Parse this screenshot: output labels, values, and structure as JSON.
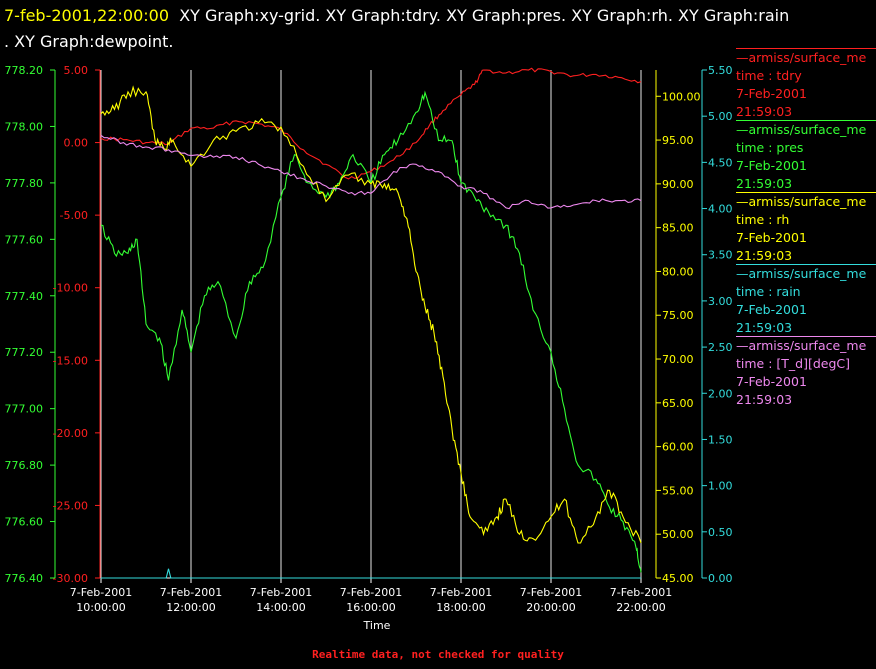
{
  "title": {
    "timestamp": "7-feb-2001,22:00:00",
    "line1": "XY Graph:xy-grid.  XY Graph:tdry.  XY Graph:pres.  XY Graph:rh.  XY Graph:rain",
    "line2": ".  XY Graph:dewpoint."
  },
  "footer": "Realtime data, not checked for quality",
  "legend": [
    {
      "name": "—armiss/surface_me",
      "var": "time : tdry",
      "date": "7-Feb-2001",
      "time": "21:59:03",
      "color": "#ff2020"
    },
    {
      "name": "—armiss/surface_me",
      "var": "time : pres",
      "date": "7-Feb-2001",
      "time": "21:59:03",
      "color": "#33ff33"
    },
    {
      "name": "—armiss/surface_me",
      "var": "time : rh",
      "date": "7-Feb-2001",
      "time": "21:59:03",
      "color": "#ffff00"
    },
    {
      "name": "—armiss/surface_me",
      "var": "time : rain",
      "date": "7-Feb-2001",
      "time": "21:59:03",
      "color": "#33dddd"
    },
    {
      "name": "—armiss/surface_me",
      "var": "time : [T_d][degC]",
      "date": "7-Feb-2001",
      "time": "21:59:03",
      "color": "#ee88ee"
    }
  ],
  "chart_data": {
    "type": "line",
    "xlabel": "Time",
    "xlim": [
      10,
      22
    ],
    "grid": true,
    "x_ticks": [
      {
        "value": 10,
        "date": "7-Feb-2001",
        "time": "10:00:00"
      },
      {
        "value": 12,
        "date": "7-Feb-2001",
        "time": "12:00:00"
      },
      {
        "value": 14,
        "date": "7-Feb-2001",
        "time": "14:00:00"
      },
      {
        "value": 16,
        "date": "7-Feb-2001",
        "time": "16:00:00"
      },
      {
        "value": 18,
        "date": "7-Feb-2001",
        "time": "18:00:00"
      },
      {
        "value": 20,
        "date": "7-Feb-2001",
        "time": "20:00:00"
      },
      {
        "value": 22,
        "date": "7-Feb-2001",
        "time": "22:00:00"
      }
    ],
    "axes": [
      {
        "id": "pres",
        "side": "left",
        "color": "#33ff33",
        "range": [
          776.4,
          778.2
        ],
        "ticks": [
          "778.20",
          "778.00",
          "777.80",
          "777.60",
          "777.40",
          "777.20",
          "777.00",
          "776.80",
          "776.60",
          "776.40"
        ]
      },
      {
        "id": "tdry",
        "side": "left",
        "color": "#ff2020",
        "range": [
          -30.0,
          5.0
        ],
        "ticks": [
          "5.00",
          "0.00",
          "-5.00",
          "-10.00",
          "-15.00",
          "-20.00",
          "-25.00",
          "-30.00"
        ]
      },
      {
        "id": "rh",
        "side": "right",
        "color": "#ffff00",
        "range": [
          45.0,
          103.0
        ],
        "ticks": [
          "100.00",
          "95.00",
          "90.00",
          "85.00",
          "80.00",
          "75.00",
          "70.00",
          "65.00",
          "60.00",
          "55.00",
          "50.00",
          "45.00"
        ]
      },
      {
        "id": "rain",
        "side": "right",
        "color": "#33dddd",
        "range": [
          0,
          5.5
        ],
        "ticks": [
          "5.50",
          "5.00",
          "4.50",
          "4.00",
          "3.50",
          "3.00",
          "2.50",
          "2.00",
          "1.50",
          "1.00",
          "0.50",
          "0.00"
        ]
      }
    ],
    "series": [
      {
        "name": "tdry",
        "axis": "tdry",
        "color": "#ff2020",
        "x": [
          10.0,
          10.5,
          11.0,
          11.5,
          12.0,
          12.5,
          13.0,
          13.5,
          14.0,
          14.5,
          15.0,
          15.5,
          16.0,
          16.5,
          17.0,
          17.3,
          17.6,
          18.0,
          18.3,
          18.5,
          19.0,
          19.5,
          20.0,
          20.5,
          21.0,
          21.5,
          22.0
        ],
        "y": [
          0.3,
          0.2,
          0.0,
          -0.1,
          1.0,
          1.0,
          1.5,
          1.3,
          0.9,
          -0.5,
          -1.5,
          -2.5,
          -2.0,
          -1.2,
          0.0,
          1.2,
          2.2,
          3.3,
          4.0,
          5.0,
          4.8,
          5.0,
          4.9,
          4.6,
          4.7,
          4.5,
          4.2
        ]
      },
      {
        "name": "pres",
        "axis": "pres",
        "color": "#33ff33",
        "x": [
          10.0,
          10.3,
          10.6,
          10.8,
          11.0,
          11.3,
          11.5,
          11.8,
          12.0,
          12.3,
          12.6,
          13.0,
          13.3,
          13.6,
          14.0,
          14.3,
          14.6,
          15.0,
          15.3,
          15.6,
          16.0,
          16.3,
          16.6,
          17.0,
          17.2,
          17.5,
          17.8,
          18.0,
          18.3,
          18.6,
          19.0,
          19.3,
          19.6,
          20.0,
          20.3,
          20.6,
          21.0,
          21.3,
          21.6,
          21.9,
          22.0
        ],
        "y": [
          777.65,
          777.55,
          777.55,
          777.6,
          777.3,
          777.25,
          777.1,
          777.35,
          777.2,
          777.4,
          777.45,
          777.25,
          777.45,
          777.5,
          777.75,
          777.9,
          777.8,
          777.75,
          777.8,
          777.9,
          777.8,
          777.9,
          777.95,
          778.05,
          778.12,
          777.95,
          777.95,
          777.8,
          777.75,
          777.7,
          777.65,
          777.55,
          777.35,
          777.2,
          777.0,
          776.8,
          776.75,
          776.65,
          776.6,
          776.5,
          776.42
        ]
      },
      {
        "name": "rh",
        "axis": "rh",
        "color": "#ffff00",
        "x": [
          10.0,
          10.3,
          10.6,
          11.0,
          11.2,
          11.4,
          11.6,
          12.0,
          12.5,
          13.0,
          13.5,
          14.0,
          14.5,
          15.0,
          15.5,
          16.0,
          16.3,
          16.6,
          16.8,
          17.0,
          17.2,
          17.4,
          17.6,
          17.8,
          18.0,
          18.2,
          18.5,
          18.8,
          19.0,
          19.3,
          19.6,
          20.0,
          20.3,
          20.6,
          21.0,
          21.3,
          21.6,
          22.0
        ],
        "y": [
          98.0,
          98.5,
          100.5,
          100.5,
          95.0,
          94.0,
          95.0,
          92.0,
          95.0,
          96.0,
          97.0,
          96.5,
          92.0,
          88.0,
          91.0,
          90.0,
          90.0,
          89.0,
          86.0,
          80.0,
          76.0,
          73.0,
          68.0,
          62.0,
          57.0,
          52.0,
          50.0,
          52.0,
          54.0,
          50.0,
          49.5,
          52.0,
          54.0,
          49.0,
          52.0,
          55.0,
          52.0,
          49.0
        ]
      },
      {
        "name": "rain",
        "axis": "rain",
        "color": "#33dddd",
        "x": [
          10.0,
          11.45,
          11.5,
          11.55,
          22.0
        ],
        "y": [
          0.0,
          0.0,
          0.1,
          0.0,
          0.0
        ]
      },
      {
        "name": "[T_d][degC]",
        "axis": "tdry",
        "color": "#ee88ee",
        "x": [
          10.0,
          10.5,
          11.0,
          11.5,
          12.0,
          12.5,
          13.0,
          13.5,
          14.0,
          14.5,
          15.0,
          15.5,
          16.0,
          16.5,
          17.0,
          17.5,
          18.0,
          18.5,
          19.0,
          19.5,
          20.0,
          20.5,
          21.0,
          21.5,
          22.0
        ],
        "y": [
          0.5,
          0.0,
          -0.3,
          -0.5,
          -0.9,
          -1.0,
          -1.0,
          -1.5,
          -2.0,
          -2.5,
          -3.0,
          -3.5,
          -3.5,
          -2.0,
          -1.5,
          -2.0,
          -3.0,
          -3.5,
          -4.5,
          -4.0,
          -4.5,
          -4.3,
          -4.0,
          -4.0,
          -4.0
        ]
      }
    ]
  }
}
